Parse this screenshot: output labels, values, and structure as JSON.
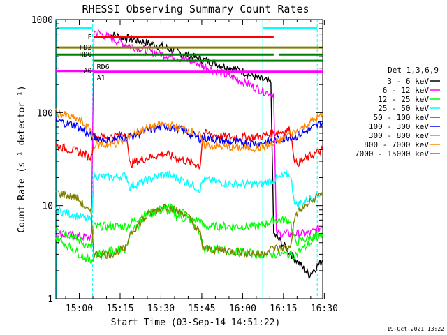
{
  "chart_data": {
    "type": "line",
    "title": "RHESSI Observing Summary Count Rates",
    "xlabel": "Start Time (03-Sep-14 14:51:22)",
    "ylabel": "Count Rate (s⁻¹ detector⁻¹)",
    "y_scale": "log",
    "ylim": [
      1,
      1000
    ],
    "xlim_minutes_since_start": [
      0,
      98
    ],
    "x_ticks": [
      {
        "label": "15:00",
        "t": 8.6
      },
      {
        "label": "15:15",
        "t": 23.6
      },
      {
        "label": "15:30",
        "t": 38.6
      },
      {
        "label": "15:45",
        "t": 53.6
      },
      {
        "label": "16:00",
        "t": 68.6
      },
      {
        "label": "16:15",
        "t": 83.6
      },
      {
        "label": "16:30",
        "t": 98.6
      }
    ],
    "y_ticks": [
      {
        "label": "1",
        "v": 1
      },
      {
        "label": "10",
        "v": 10
      },
      {
        "label": "100",
        "v": 100
      },
      {
        "label": "1000",
        "v": 1000
      }
    ],
    "legend_title": "Det 1,3,6,9",
    "legend_position": "right",
    "series": [
      {
        "name": "3 - 6 keV",
        "color": "#000000",
        "values": [
          [
            19,
            700
          ],
          [
            30,
            600
          ],
          [
            40,
            500
          ],
          [
            50,
            400
          ],
          [
            60,
            330
          ],
          [
            68,
            280
          ],
          [
            75,
            230
          ],
          [
            79,
            210
          ],
          [
            80,
            5
          ],
          [
            93,
            1.8
          ],
          [
            98,
            2.6
          ]
        ]
      },
      {
        "name": "6 - 12 keV",
        "color": "#ff00ff",
        "values": [
          [
            0,
            5
          ],
          [
            13,
            4.5
          ],
          [
            14,
            750
          ],
          [
            25,
            550
          ],
          [
            35,
            450
          ],
          [
            50,
            360
          ],
          [
            60,
            270
          ],
          [
            68,
            220
          ],
          [
            76,
            170
          ],
          [
            80,
            160
          ],
          [
            81,
            5
          ],
          [
            93,
            5
          ],
          [
            98,
            6
          ]
        ]
      },
      {
        "name": "12 - 25 keV",
        "color": "#00ff00",
        "values": [
          [
            0,
            6
          ],
          [
            13,
            3.5
          ],
          [
            14,
            6
          ],
          [
            20,
            6
          ],
          [
            26,
            6
          ],
          [
            32,
            8
          ],
          [
            40,
            9
          ],
          [
            48,
            7
          ],
          [
            53,
            7
          ],
          [
            54,
            6
          ],
          [
            65,
            6
          ],
          [
            75,
            6
          ],
          [
            80,
            7
          ],
          [
            86,
            7
          ],
          [
            88,
            4
          ],
          [
            98,
            5
          ]
        ]
      },
      {
        "name": "25 - 50 keV",
        "color": "#00ffff",
        "values": [
          [
            0,
            9
          ],
          [
            13,
            7
          ],
          [
            14,
            21
          ],
          [
            20,
            20
          ],
          [
            26,
            21
          ],
          [
            27,
            16
          ],
          [
            34,
            19
          ],
          [
            40,
            22
          ],
          [
            48,
            18
          ],
          [
            53,
            15
          ],
          [
            54,
            19
          ],
          [
            65,
            17
          ],
          [
            75,
            17
          ],
          [
            80,
            19
          ],
          [
            86,
            22
          ],
          [
            88,
            10
          ],
          [
            98,
            14
          ]
        ]
      },
      {
        "name": "50 - 100 keV",
        "color": "#ff0000",
        "values": [
          [
            0,
            44
          ],
          [
            8,
            38
          ],
          [
            13,
            33
          ],
          [
            14,
            55
          ],
          [
            20,
            55
          ],
          [
            26,
            60
          ],
          [
            27,
            28
          ],
          [
            34,
            33
          ],
          [
            40,
            36
          ],
          [
            48,
            30
          ],
          [
            53,
            27
          ],
          [
            54,
            60
          ],
          [
            65,
            54
          ],
          [
            75,
            55
          ],
          [
            80,
            60
          ],
          [
            86,
            65
          ],
          [
            88,
            28
          ],
          [
            98,
            40
          ]
        ]
      },
      {
        "name": "100 - 300 keV",
        "color": "#0000ff",
        "values": [
          [
            0,
            82
          ],
          [
            8,
            72
          ],
          [
            13,
            55
          ],
          [
            14,
            54
          ],
          [
            20,
            50
          ],
          [
            26,
            55
          ],
          [
            27,
            55
          ],
          [
            34,
            65
          ],
          [
            40,
            72
          ],
          [
            48,
            62
          ],
          [
            53,
            52
          ],
          [
            54,
            54
          ],
          [
            65,
            48
          ],
          [
            75,
            47
          ],
          [
            80,
            50
          ],
          [
            86,
            55
          ],
          [
            88,
            55
          ],
          [
            98,
            78
          ]
        ]
      },
      {
        "name": "300 - 800 keV",
        "color": "#00ff00",
        "values": [
          [
            0,
            4.5
          ],
          [
            13,
            2.5
          ],
          [
            14,
            3
          ],
          [
            26,
            3.5
          ],
          [
            27,
            5
          ],
          [
            34,
            8
          ],
          [
            40,
            10
          ],
          [
            48,
            8
          ],
          [
            53,
            5
          ],
          [
            54,
            3.5
          ],
          [
            75,
            3
          ],
          [
            86,
            3
          ],
          [
            88,
            3
          ],
          [
            98,
            5
          ]
        ]
      },
      {
        "name": "800 - 7000 keV",
        "color": "#ff8800",
        "values": [
          [
            0,
            100
          ],
          [
            8,
            85
          ],
          [
            13,
            65
          ],
          [
            14,
            45
          ],
          [
            20,
            45
          ],
          [
            26,
            50
          ],
          [
            27,
            58
          ],
          [
            34,
            68
          ],
          [
            40,
            75
          ],
          [
            48,
            66
          ],
          [
            53,
            56
          ],
          [
            54,
            45
          ],
          [
            65,
            42
          ],
          [
            75,
            42
          ],
          [
            80,
            45
          ],
          [
            86,
            60
          ],
          [
            88,
            62
          ],
          [
            98,
            95
          ]
        ]
      },
      {
        "name": "7000 - 15000 keV",
        "color": "#808000",
        "values": [
          [
            0,
            14
          ],
          [
            8,
            12
          ],
          [
            13,
            8
          ],
          [
            14,
            3
          ],
          [
            20,
            3
          ],
          [
            26,
            3.5
          ],
          [
            27,
            5
          ],
          [
            34,
            8
          ],
          [
            40,
            10
          ],
          [
            48,
            8
          ],
          [
            53,
            5
          ],
          [
            54,
            3.5
          ],
          [
            75,
            3
          ],
          [
            80,
            3.5
          ],
          [
            86,
            3.5
          ],
          [
            88,
            8
          ],
          [
            98,
            14
          ]
        ]
      }
    ],
    "annotations": [
      {
        "text": "F",
        "color": "#ff00ff",
        "line_color": "#ff0000",
        "y": 650
      },
      {
        "text": "FD2",
        "color": "#808000",
        "line_color": "#808000",
        "y": 500
      },
      {
        "text": "RD0",
        "color": "#008000",
        "line_color": "#008000",
        "y": 420
      },
      {
        "text": "RD6",
        "color": "#008000",
        "line_color": "#008000",
        "y": 360
      },
      {
        "text": "A0",
        "color": "#ff00ff",
        "line_color": "#ff00ff",
        "y": 280
      },
      {
        "text": "A1",
        "color": "#ff00ff",
        "line_color": "#ff00ff",
        "y": 275
      }
    ]
  },
  "timestamp": "19-Oct-2021 13:22",
  "colors": {
    "saa_marker": "#00ffff"
  }
}
